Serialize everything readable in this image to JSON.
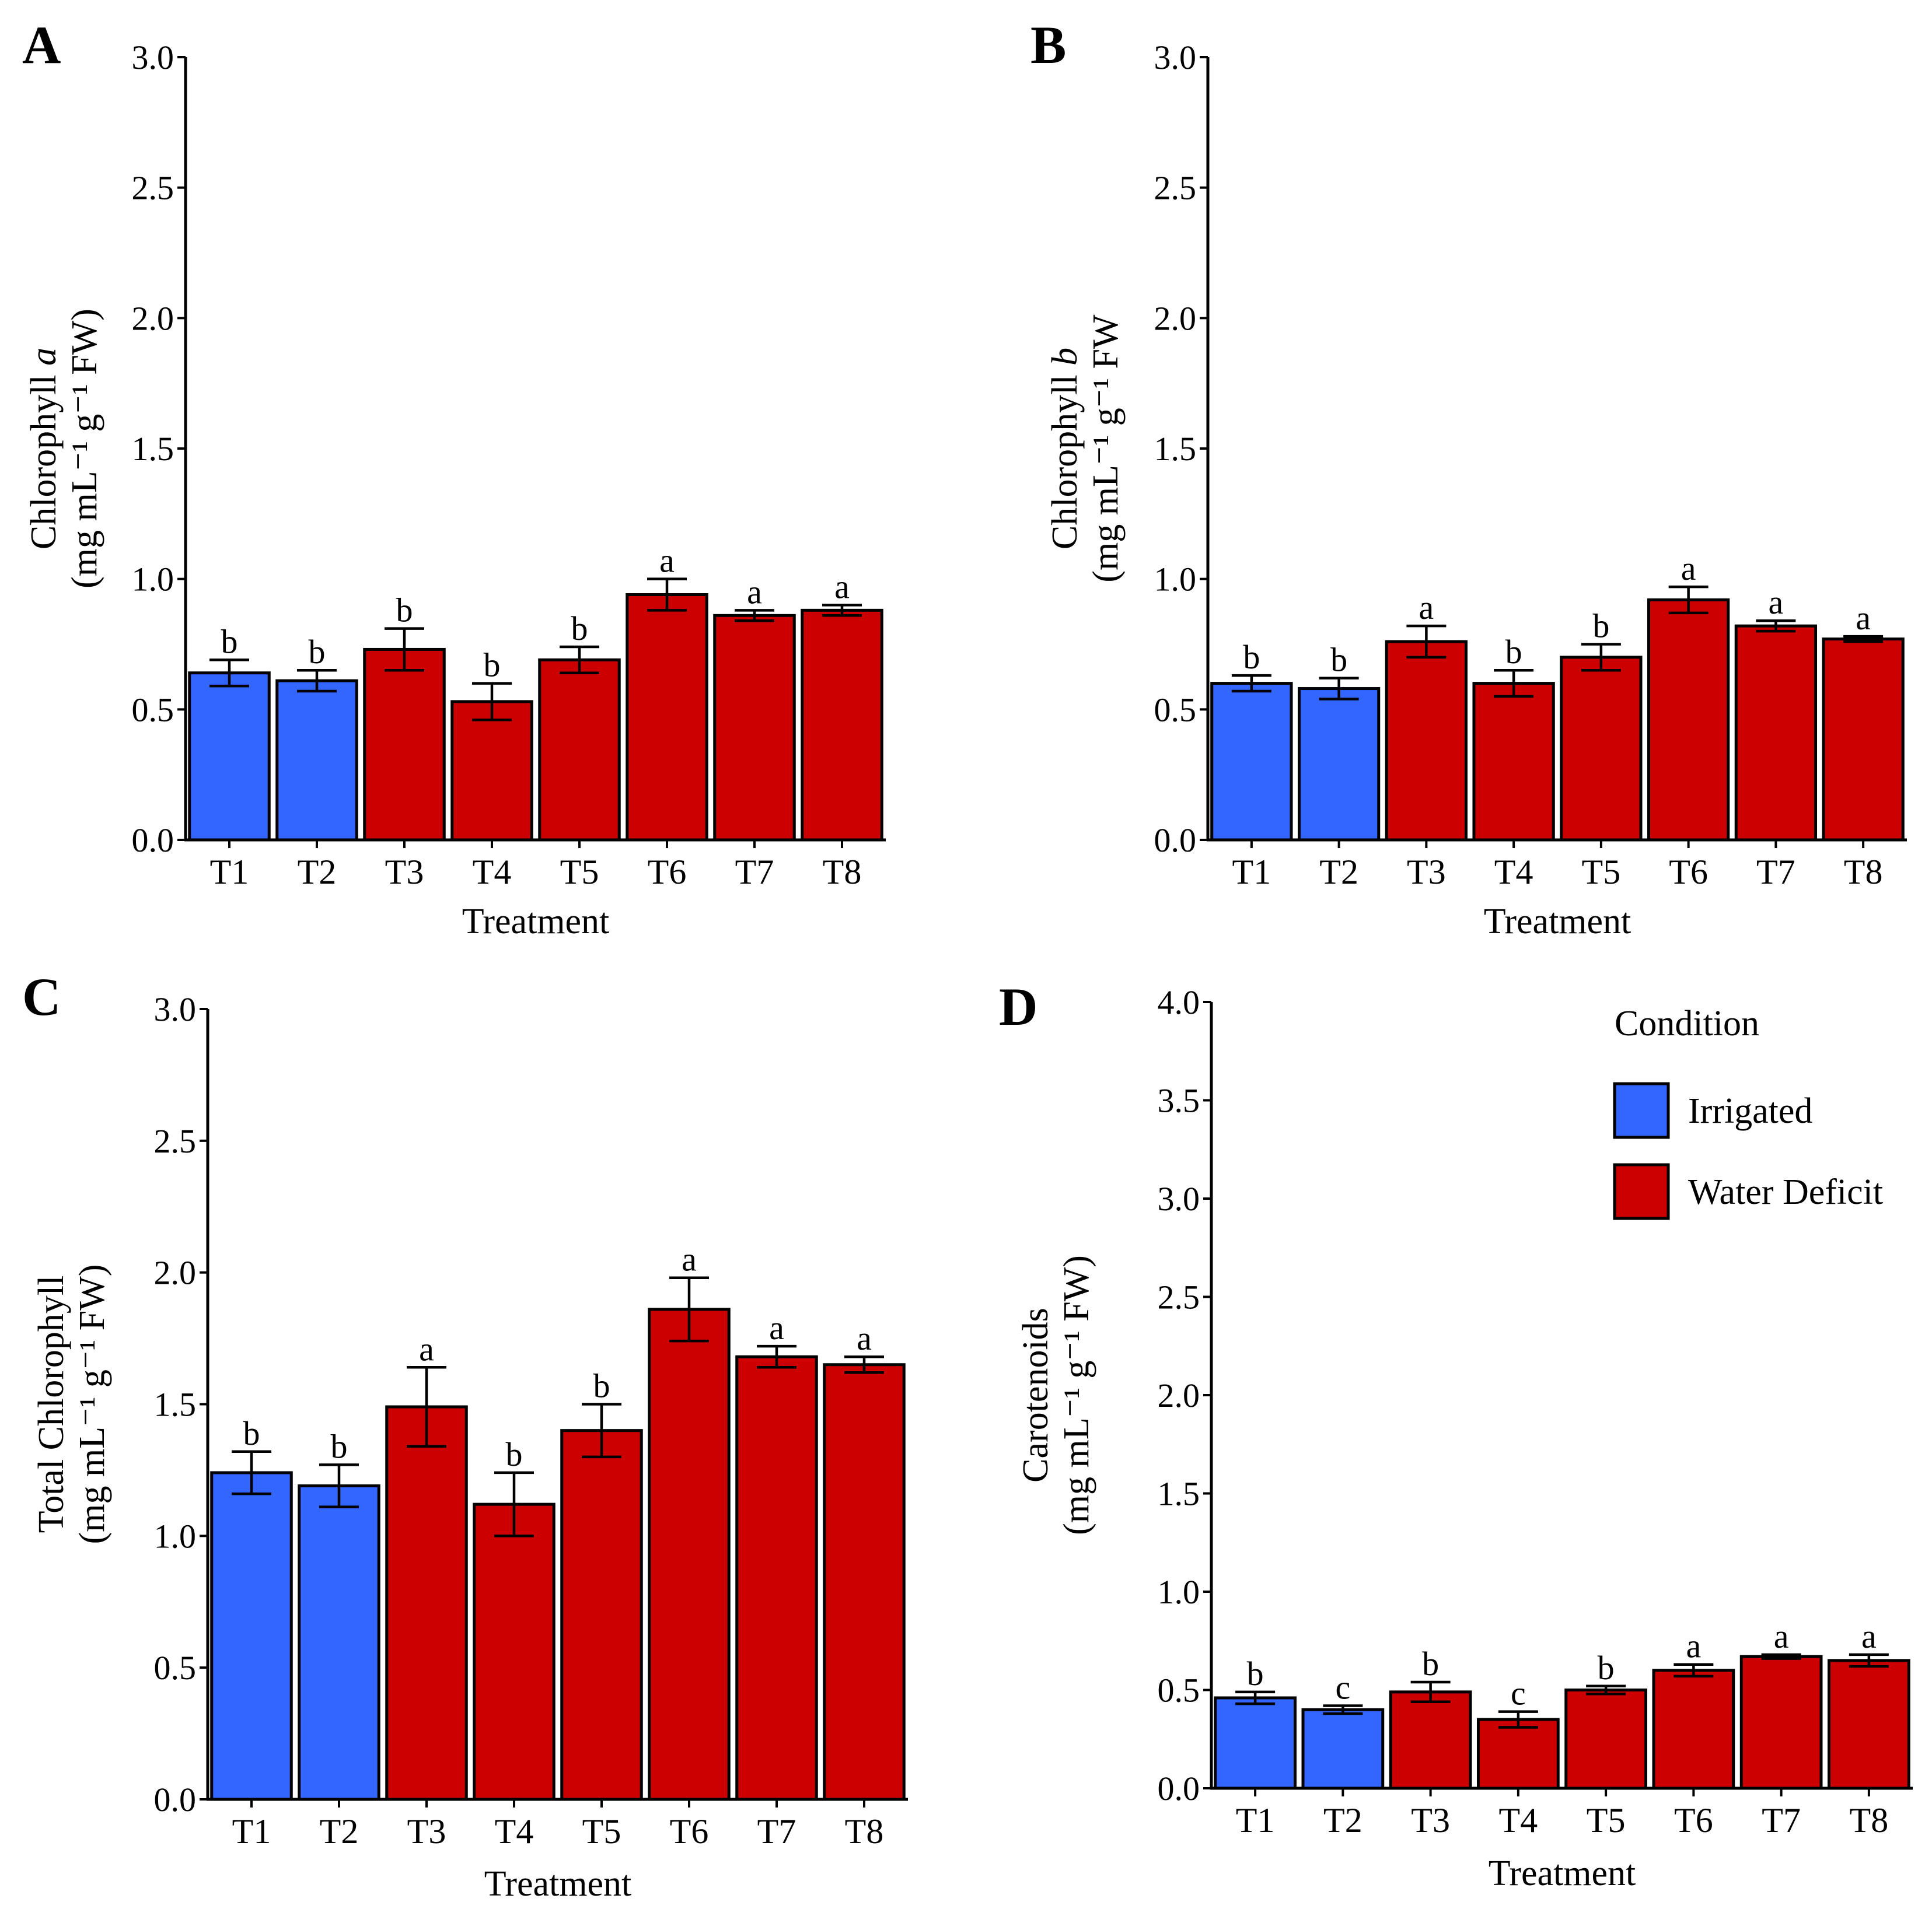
{
  "colors": {
    "irrigated": "#3366ff",
    "water_deficit": "#cc0000",
    "outline": "#000000"
  },
  "legend": {
    "title": "Condition",
    "items": [
      {
        "label": "Irrigated",
        "color": "#3366ff"
      },
      {
        "label": "Water Deficit",
        "color": "#cc0000"
      }
    ]
  },
  "chart_data": [
    {
      "panel": "A",
      "type": "bar",
      "xlabel": "Treatment",
      "ylabel_main": "Chlorophyll ",
      "ylabel_italic": "a",
      "ylabel_units": "(mg mL⁻¹ g⁻¹ FW)",
      "ylim": [
        0,
        3
      ],
      "yticks": [
        "0.0",
        "0.5",
        "1.0",
        "1.5",
        "2.0",
        "2.5",
        "3.0"
      ],
      "categories": [
        "T1",
        "T2",
        "T3",
        "T4",
        "T5",
        "T6",
        "T7",
        "T8"
      ],
      "condition": [
        "Irrigated",
        "Irrigated",
        "Water Deficit",
        "Water Deficit",
        "Water Deficit",
        "Water Deficit",
        "Water Deficit",
        "Water Deficit"
      ],
      "values": [
        0.64,
        0.61,
        0.73,
        0.53,
        0.69,
        0.94,
        0.86,
        0.88
      ],
      "errors": [
        0.05,
        0.04,
        0.08,
        0.07,
        0.05,
        0.06,
        0.02,
        0.02
      ],
      "letters": [
        "b",
        "b",
        "b",
        "b",
        "b",
        "a",
        "a",
        "a"
      ]
    },
    {
      "panel": "B",
      "type": "bar",
      "xlabel": "Treatment",
      "ylabel_main": "Chlorophyll ",
      "ylabel_italic": "b",
      "ylabel_units": "(mg mL⁻¹ g⁻¹ FW",
      "ylim": [
        0,
        3
      ],
      "yticks": [
        "0.0",
        "0.5",
        "1.0",
        "1.5",
        "2.0",
        "2.5",
        "3.0"
      ],
      "categories": [
        "T1",
        "T2",
        "T3",
        "T4",
        "T5",
        "T6",
        "T7",
        "T8"
      ],
      "condition": [
        "Irrigated",
        "Irrigated",
        "Water Deficit",
        "Water Deficit",
        "Water Deficit",
        "Water Deficit",
        "Water Deficit",
        "Water Deficit"
      ],
      "values": [
        0.6,
        0.58,
        0.76,
        0.6,
        0.7,
        0.92,
        0.82,
        0.77
      ],
      "errors": [
        0.03,
        0.04,
        0.06,
        0.05,
        0.05,
        0.05,
        0.02,
        0.01
      ],
      "letters": [
        "b",
        "b",
        "a",
        "b",
        "b",
        "a",
        "a",
        "a"
      ]
    },
    {
      "panel": "C",
      "type": "bar",
      "xlabel": "Treatment",
      "ylabel_main": "Total Chlorophyll",
      "ylabel_italic": "",
      "ylabel_units": "(mg mL⁻¹ g⁻¹ FW)",
      "ylim": [
        0,
        3
      ],
      "yticks": [
        "0.0",
        "0.5",
        "1.0",
        "1.5",
        "2.0",
        "2.5",
        "3.0"
      ],
      "categories": [
        "T1",
        "T2",
        "T3",
        "T4",
        "T5",
        "T6",
        "T7",
        "T8"
      ],
      "condition": [
        "Irrigated",
        "Irrigated",
        "Water Deficit",
        "Water Deficit",
        "Water Deficit",
        "Water Deficit",
        "Water Deficit",
        "Water Deficit"
      ],
      "values": [
        1.24,
        1.19,
        1.49,
        1.12,
        1.4,
        1.86,
        1.68,
        1.65
      ],
      "errors": [
        0.08,
        0.08,
        0.15,
        0.12,
        0.1,
        0.12,
        0.04,
        0.03
      ],
      "letters": [
        "b",
        "b",
        "a",
        "b",
        "b",
        "a",
        "a",
        "a"
      ]
    },
    {
      "panel": "D",
      "type": "bar",
      "xlabel": "Treatment",
      "ylabel_main": "Carotenoids",
      "ylabel_italic": "",
      "ylabel_units": "(mg mL⁻¹ g⁻¹ FW)",
      "ylim": [
        0,
        4
      ],
      "yticks": [
        "0.0",
        "0.5",
        "1.0",
        "1.5",
        "2.0",
        "2.5",
        "3.0",
        "3.5",
        "4.0"
      ],
      "categories": [
        "T1",
        "T2",
        "T3",
        "T4",
        "T5",
        "T6",
        "T7",
        "T8"
      ],
      "condition": [
        "Irrigated",
        "Irrigated",
        "Water Deficit",
        "Water Deficit",
        "Water Deficit",
        "Water Deficit",
        "Water Deficit",
        "Water Deficit"
      ],
      "values": [
        0.46,
        0.4,
        0.49,
        0.35,
        0.5,
        0.6,
        0.67,
        0.65
      ],
      "errors": [
        0.03,
        0.02,
        0.05,
        0.04,
        0.02,
        0.03,
        0.01,
        0.03
      ],
      "letters": [
        "b",
        "c",
        "b",
        "c",
        "b",
        "a",
        "a",
        "a"
      ]
    }
  ]
}
